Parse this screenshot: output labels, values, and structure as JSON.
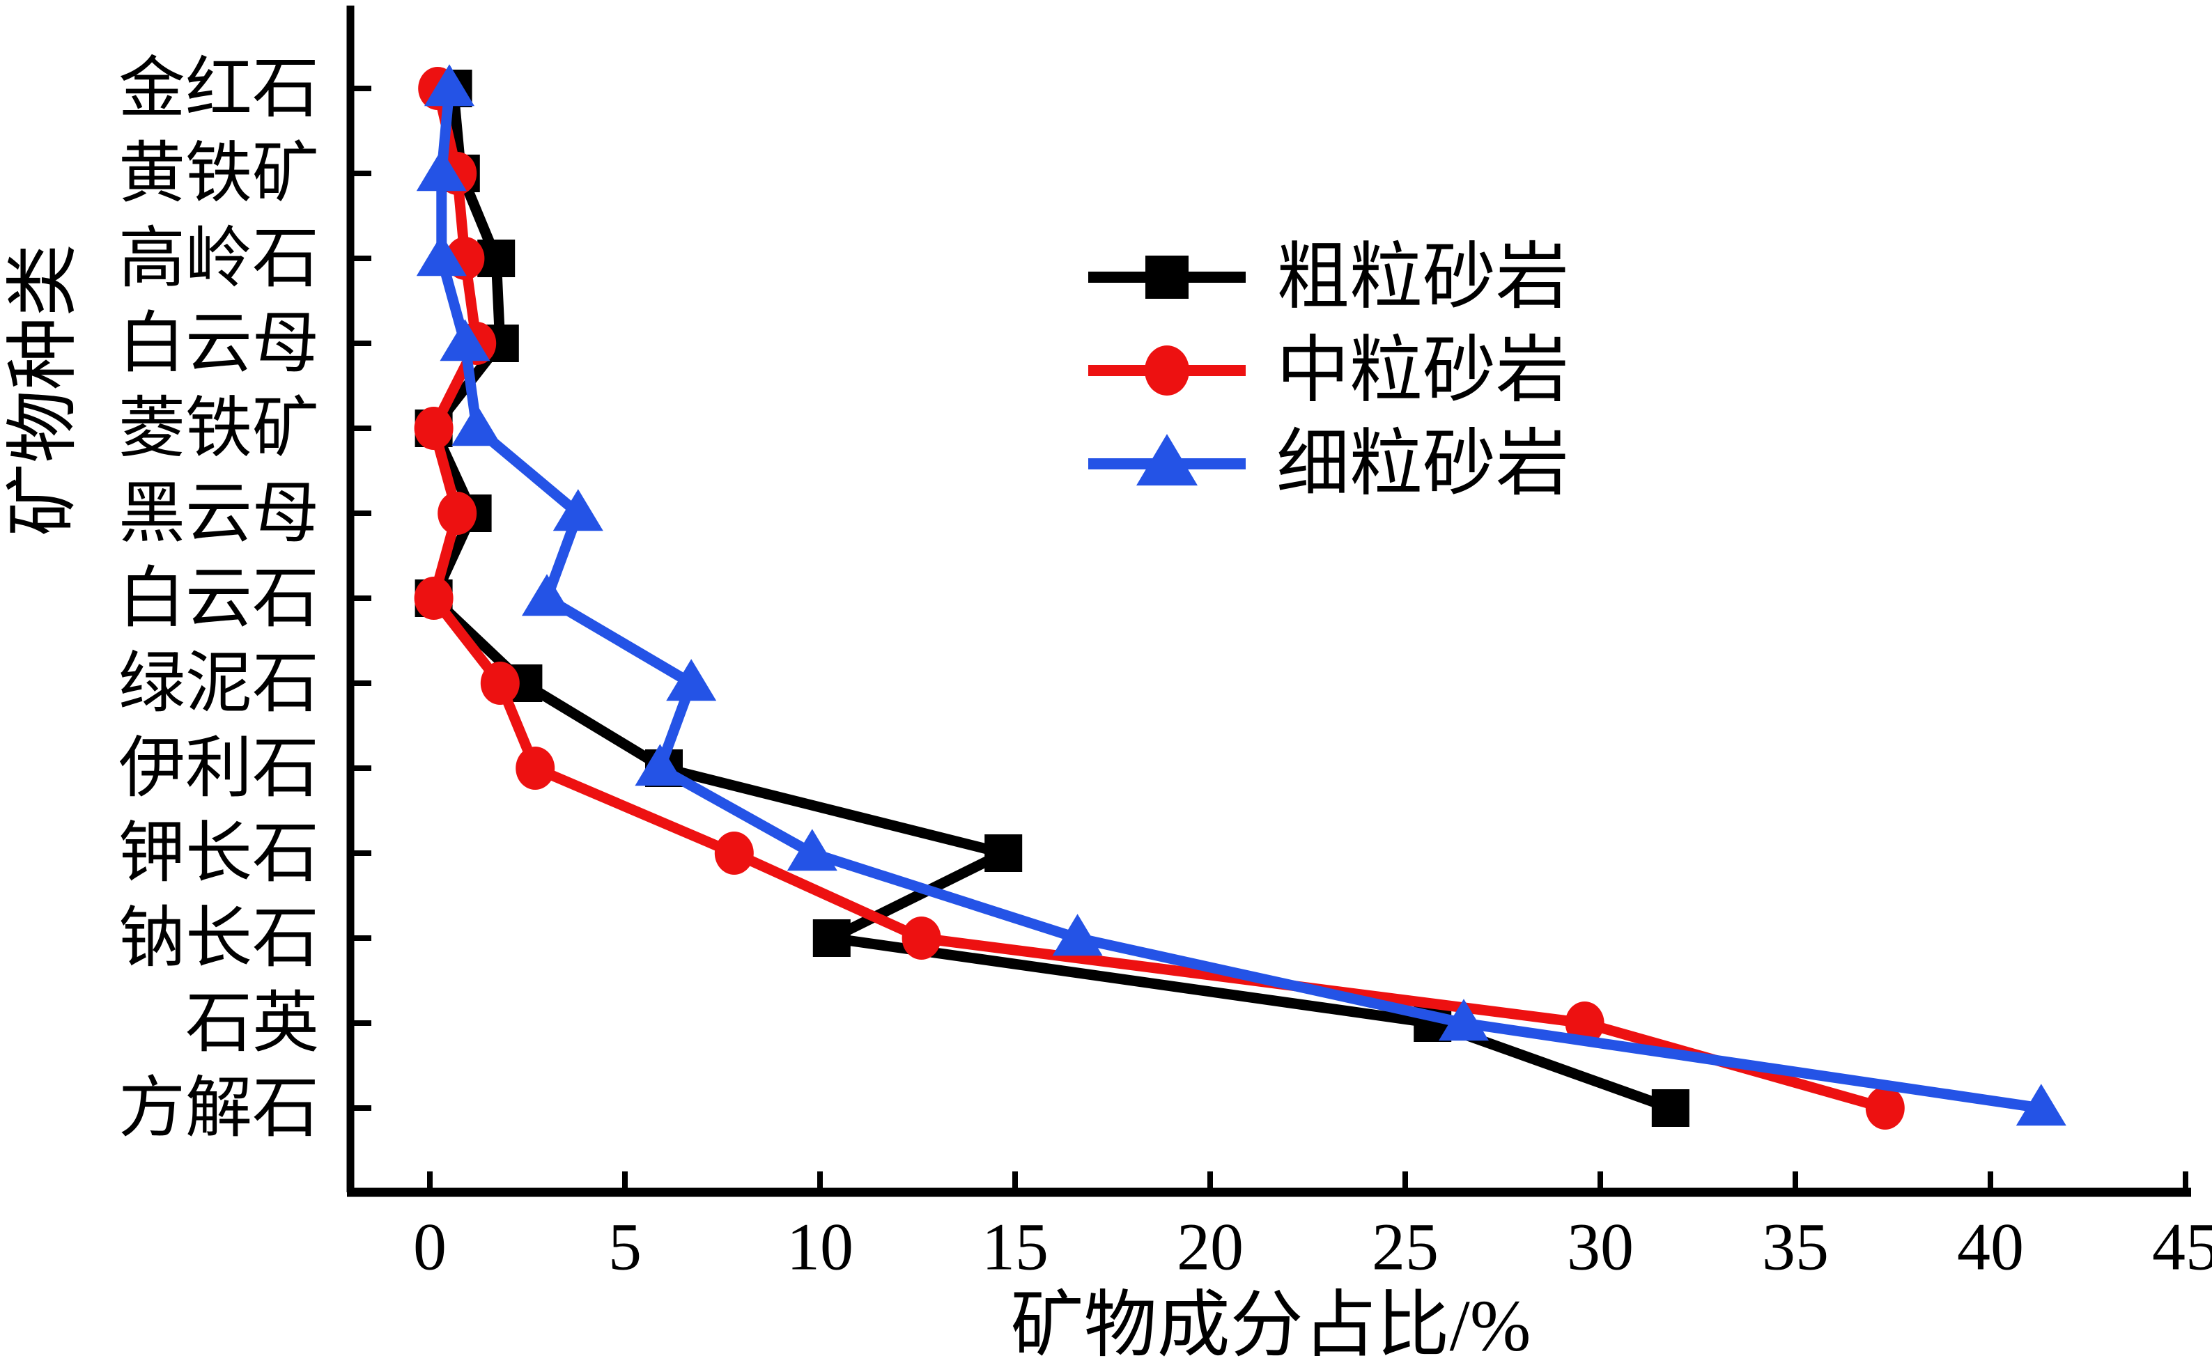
{
  "chart_data": {
    "type": "line",
    "orientation": "horizontal-categories-on-y",
    "title": "",
    "xlabel": "矿物成分占比/%",
    "ylabel": "矿物种类",
    "xlim": [
      0,
      45
    ],
    "xticks": [
      0,
      5,
      10,
      15,
      20,
      25,
      30,
      35,
      40,
      45
    ],
    "grid": false,
    "legend_position": "upper-right-inside",
    "categories": [
      "金红石",
      "黄铁矿",
      "高岭石",
      "白云母",
      "菱铁矿",
      "黑云母",
      "白云石",
      "绿泥石",
      "伊利石",
      "钾长石",
      "钠长石",
      "石英",
      "方解石"
    ],
    "series": [
      {
        "name": "粗粒砂岩",
        "slug": "coarse-sandstone",
        "marker": "square",
        "color": "#000000",
        "values": [
          0.6,
          0.8,
          1.7,
          1.8,
          0.1,
          1.1,
          0.1,
          2.4,
          6.0,
          14.7,
          10.3,
          25.7,
          31.8
        ]
      },
      {
        "name": "中粒砂岩",
        "slug": "medium-sandstone",
        "marker": "circle",
        "color": "#ed1111",
        "values": [
          0.2,
          0.7,
          0.9,
          1.2,
          0.1,
          0.7,
          0.1,
          1.8,
          2.7,
          7.8,
          12.6,
          29.6,
          37.3
        ]
      },
      {
        "name": "细粒砂岩",
        "slug": "fine-sandstone",
        "marker": "triangle",
        "color": "#2453e6",
        "values": [
          0.5,
          0.3,
          0.3,
          0.9,
          1.2,
          3.8,
          3.0,
          6.7,
          5.9,
          9.8,
          16.6,
          26.5,
          41.3
        ]
      }
    ]
  }
}
